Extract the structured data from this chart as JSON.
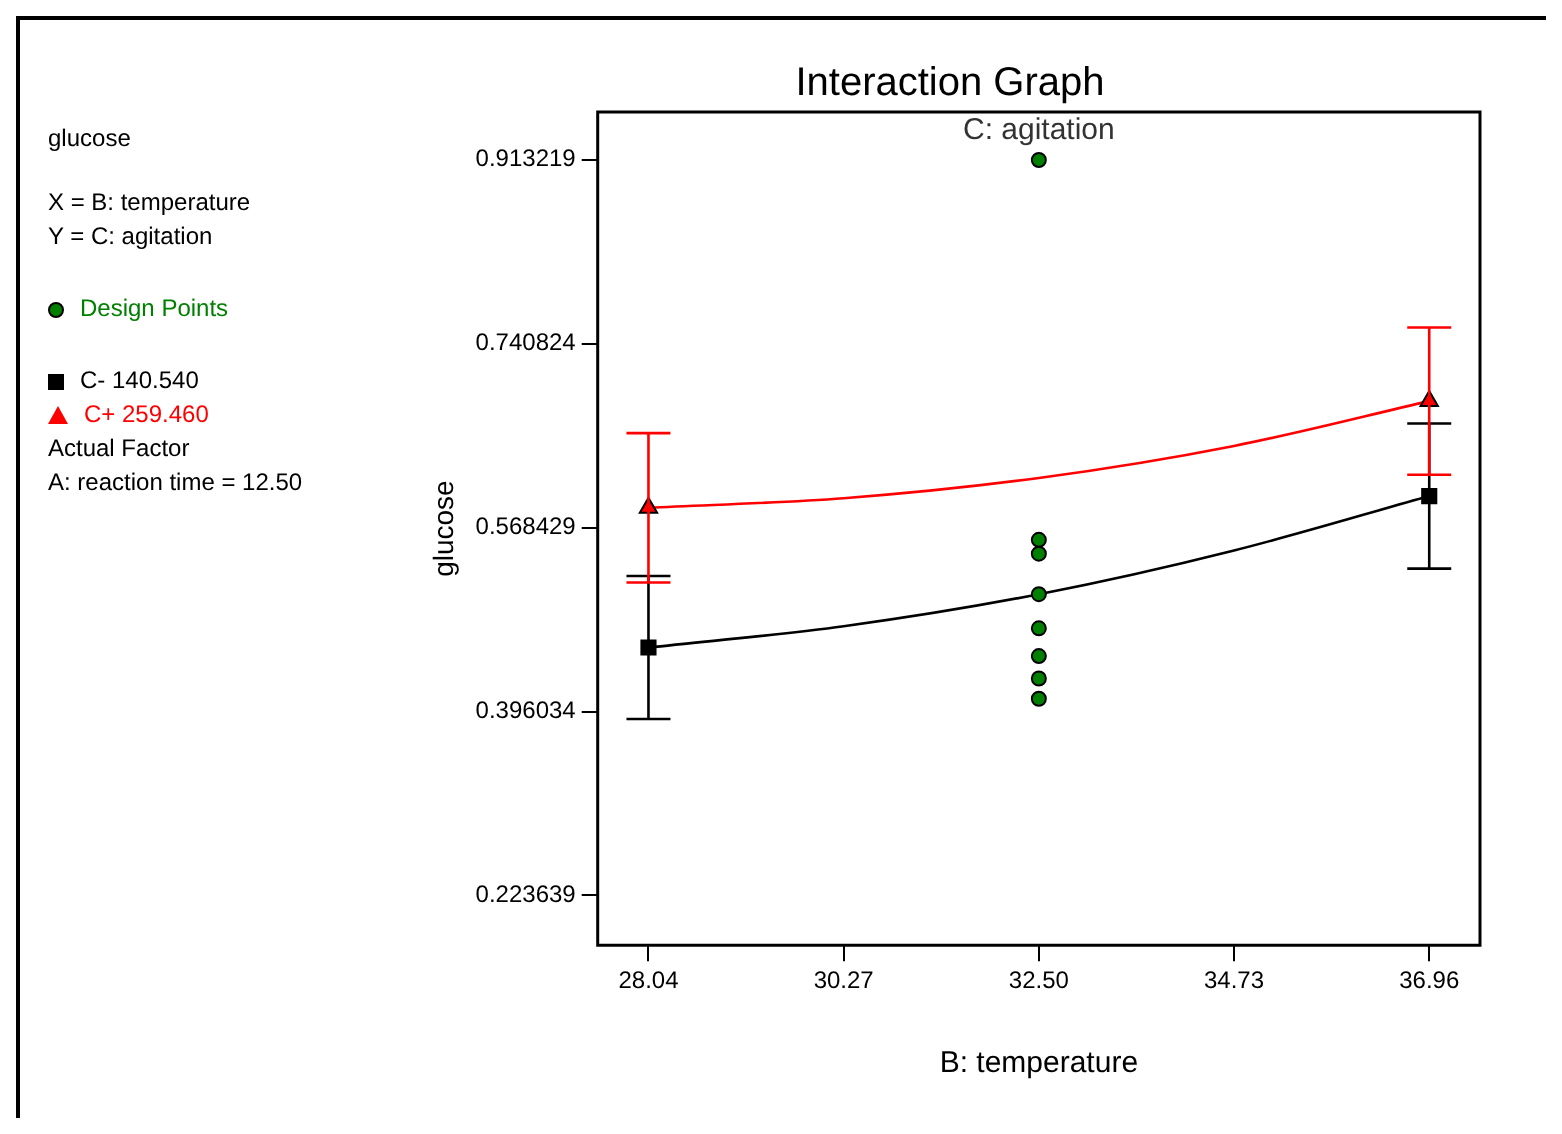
{
  "chart_data": {
    "type": "line",
    "title": "Interaction Graph",
    "subtitle": "C: agitation",
    "xlabel": "B: temperature",
    "ylabel": "glucose",
    "annotations": [
      "glucose",
      "X = B: temperature",
      "Y = C: agitation",
      "Actual Factor",
      "A: reaction time = 12.50"
    ],
    "xlim": [
      27.46,
      37.54
    ],
    "xticks": [
      28.04,
      30.27,
      {
        "value": 32.5,
        "label": "32.50"
      },
      34.73,
      36.96
    ],
    "ylim": [
      0.177,
      0.958
    ],
    "yticks": [
      0.223639,
      0.396034,
      0.568429,
      0.740824,
      0.913219
    ],
    "grid": false,
    "legend": "left",
    "line_style": "solid",
    "series": [
      {
        "type": "scatter",
        "name": "Design Points",
        "color": "#008000",
        "marker": "circle",
        "x": [
          32.5,
          32.5,
          32.5,
          32.5,
          32.5,
          32.5,
          32.5,
          32.5
        ],
        "values": [
          0.913,
          0.557,
          0.544,
          0.506,
          0.474,
          0.448,
          0.427,
          0.408
        ]
      },
      {
        "type": "scatter",
        "name": "C- 140.540",
        "color": "#000000",
        "marker": "square",
        "x": [
          28.04,
          36.96
        ],
        "values": [
          0.456,
          0.598
        ],
        "errors": [
          0.067,
          0.068
        ]
      },
      {
        "type": "scatter",
        "name": "C+ 259.460",
        "color": "#ff0000",
        "marker": "triangle",
        "x": [
          28.04,
          36.96
        ],
        "values": [
          0.587,
          0.687
        ],
        "errors": [
          0.07,
          0.069
        ]
      },
      {
        "type": "line",
        "color": "#000000",
        "marker": "none",
        "x": [
          28.04,
          30.27,
          32.5,
          34.73,
          36.96
        ],
        "values": [
          0.456,
          0.476,
          0.506,
          0.547,
          0.598
        ]
      },
      {
        "type": "line",
        "color": "#ff0000",
        "marker": "none",
        "x": [
          28.04,
          30.27,
          32.5,
          34.73,
          36.96
        ],
        "values": [
          0.587,
          0.596,
          0.615,
          0.645,
          0.687
        ]
      }
    ]
  }
}
